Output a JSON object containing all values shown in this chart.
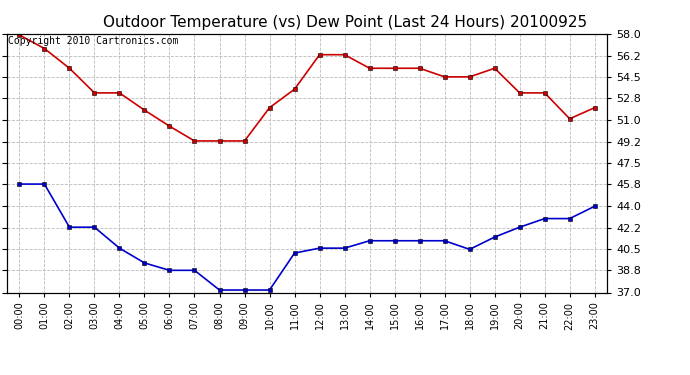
{
  "title": "Outdoor Temperature (vs) Dew Point (Last 24 Hours) 20100925",
  "copyright_text": "Copyright 2010 Cartronics.com",
  "x_labels": [
    "00:00",
    "01:00",
    "02:00",
    "03:00",
    "04:00",
    "05:00",
    "06:00",
    "07:00",
    "08:00",
    "09:00",
    "10:00",
    "11:00",
    "12:00",
    "13:00",
    "14:00",
    "15:00",
    "16:00",
    "17:00",
    "18:00",
    "19:00",
    "20:00",
    "21:00",
    "22:00",
    "23:00"
  ],
  "temp_data": [
    57.9,
    56.8,
    55.2,
    53.2,
    53.2,
    51.8,
    50.5,
    49.3,
    49.3,
    49.3,
    52.0,
    53.5,
    56.3,
    56.3,
    55.2,
    55.2,
    55.2,
    54.5,
    54.5,
    55.2,
    53.2,
    53.2,
    51.1,
    52.0
  ],
  "dew_data": [
    45.8,
    45.8,
    42.3,
    42.3,
    40.6,
    39.4,
    38.8,
    38.8,
    37.2,
    37.2,
    37.2,
    40.2,
    40.6,
    40.6,
    41.2,
    41.2,
    41.2,
    41.2,
    40.5,
    41.5,
    42.3,
    43.0,
    43.0,
    44.0
  ],
  "temp_color": "#cc0000",
  "dew_color": "#0000cc",
  "ylim": [
    37.0,
    58.0
  ],
  "yticks": [
    37.0,
    38.8,
    40.5,
    42.2,
    44.0,
    45.8,
    47.5,
    49.2,
    51.0,
    52.8,
    54.5,
    56.2,
    58.0
  ],
  "grid_color": "#bbbbbb",
  "bg_color": "#ffffff",
  "title_fontsize": 11,
  "copyright_fontsize": 7,
  "marker": "s",
  "markersize": 3,
  "linewidth": 1.2
}
